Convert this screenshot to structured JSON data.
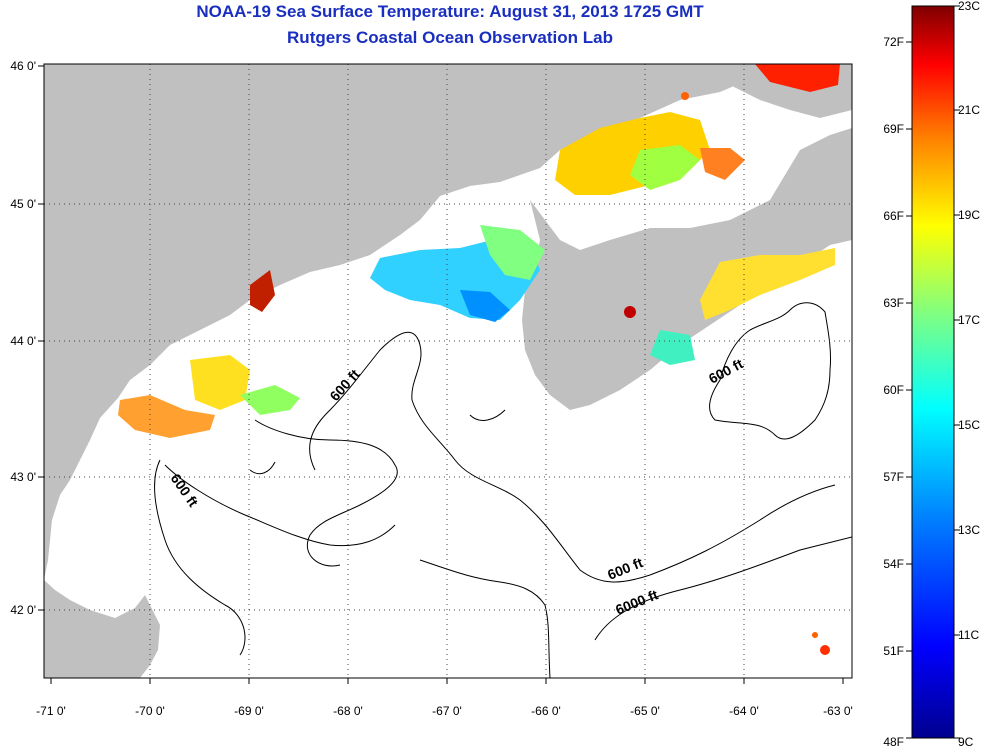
{
  "title": {
    "line1": "NOAA-19 Sea Surface Temperature:  August 31, 2013 1725 GMT",
    "line2": "Rutgers Coastal Ocean Observation Lab"
  },
  "map": {
    "lon_ticks": [
      "-71 0'",
      "-70 0'",
      "-69 0'",
      "-68 0'",
      "-67 0'",
      "-66 0'",
      "-65 0'",
      "-64 0'",
      "-63 0'"
    ],
    "lat_ticks": [
      "46 0'",
      "45 0'",
      "44 0'",
      "43 0'",
      "42 0'"
    ],
    "land_color": "#c0c0c0",
    "ocean_color": "#ffffff",
    "depth_labels": [
      "600 ft",
      "600 ft",
      "600 ft",
      "600 ft",
      "6000 ft"
    ]
  },
  "colorbar": {
    "celsius_labels": [
      "23C",
      "21C",
      "19C",
      "17C",
      "15C",
      "13C",
      "11C",
      "9C"
    ],
    "fahrenheit_labels": [
      "72F",
      "69F",
      "66F",
      "63F",
      "60F",
      "57F",
      "54F",
      "51F",
      "48F"
    ],
    "colors": [
      "#7f0000",
      "#ff0000",
      "#ff8000",
      "#ffff00",
      "#80ff80",
      "#00ffff",
      "#0080ff",
      "#0000ff",
      "#00008f"
    ]
  }
}
